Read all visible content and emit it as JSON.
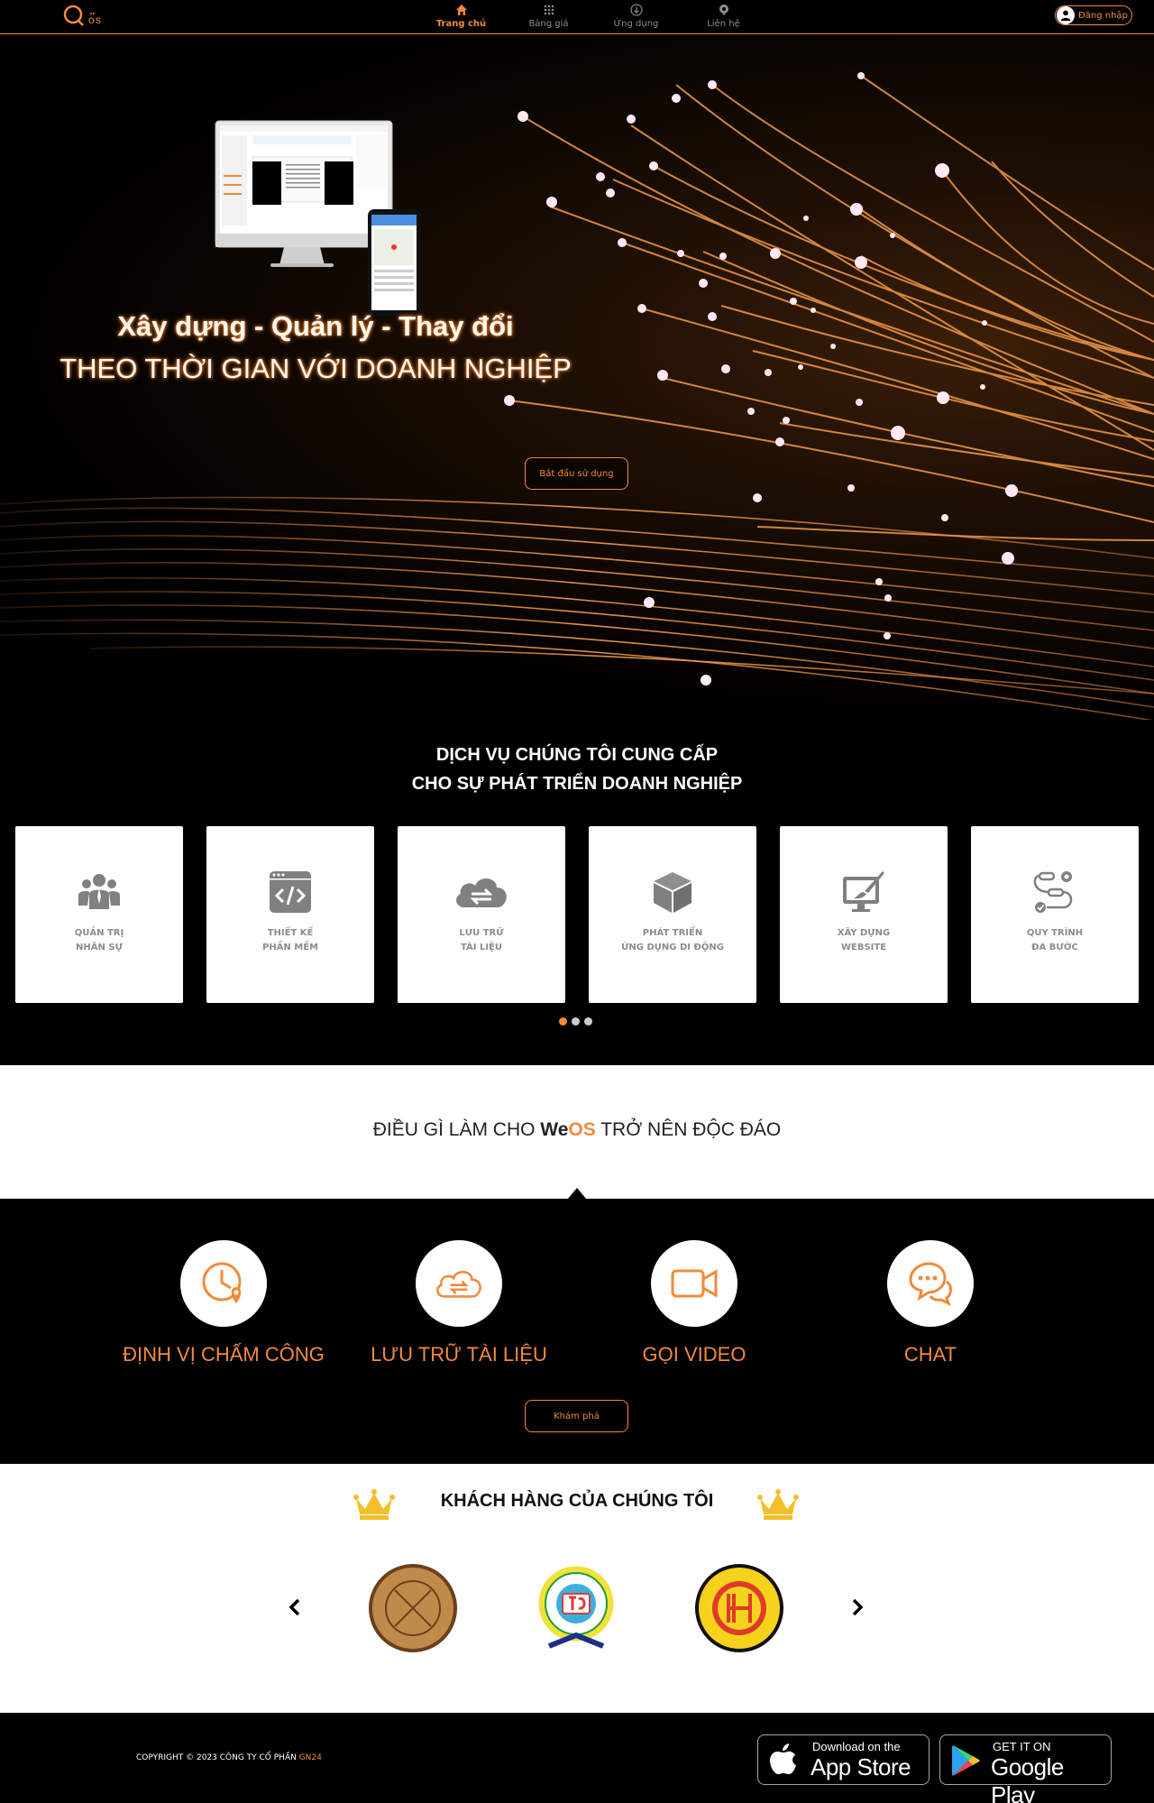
{
  "nav": {
    "items": [
      {
        "label": "Trang chủ",
        "icon": "home-icon",
        "active": true
      },
      {
        "label": "Bảng giá",
        "icon": "grid-icon",
        "active": false
      },
      {
        "label": "Ứng dụng",
        "icon": "download-icon",
        "active": false
      },
      {
        "label": "Liên hệ",
        "icon": "contact-icon",
        "active": false
      }
    ],
    "login_label": "Đăng nhập"
  },
  "hero": {
    "line1": "Xây dựng - Quản lý - Thay đổi",
    "line2": "THEO THỜI GIAN VỚI DOANH NGHIỆP",
    "cta_label": "Bắt đầu sử dụng"
  },
  "services": {
    "title_line1": "DỊCH VỤ CHÚNG TÔI CUNG CẤP",
    "title_line2": "CHO SỰ PHÁT TRIỂN DOANH NGHIỆP",
    "cards": [
      {
        "line1": "QUẢN TRỊ",
        "line2": "NHÂN SỰ",
        "icon": "people-icon"
      },
      {
        "line1": "THIẾT KẾ",
        "line2": "PHẦN MỀM",
        "icon": "code-window-icon"
      },
      {
        "line1": "LƯU TRỮ",
        "line2": "TÀI LIỆU",
        "icon": "cloud-sync-icon"
      },
      {
        "line1": "PHÁT TRIỂN",
        "line2": "ỨNG DỤNG DI ĐỘNG",
        "icon": "cube-icon"
      },
      {
        "line1": "XÂY DỰNG",
        "line2": "WEBSITE",
        "icon": "monitor-brush-icon"
      },
      {
        "line1": "QUY TRÌNH",
        "line2": "ĐA BƯỚC",
        "icon": "workflow-icon"
      }
    ],
    "pager_active": 1,
    "pager_count": 3
  },
  "unique": {
    "title_prefix": "ĐIỀU GÌ LÀM CHO ",
    "brand_we": "We",
    "brand_os": "OS",
    "title_suffix": " TRỞ NÊN ĐỘC ĐÁO",
    "features": [
      {
        "label": "ĐỊNH VỊ CHẤM CÔNG",
        "icon": "clock-location-icon"
      },
      {
        "label": "LƯU TRỮ TÀI LIỆU",
        "icon": "cloud-sync-icon"
      },
      {
        "label": "GỌI VIDEO",
        "icon": "video-camera-icon"
      },
      {
        "label": "CHAT",
        "icon": "chat-bubbles-icon"
      }
    ],
    "explore_label": "Khám phá"
  },
  "customers": {
    "title": "KHÁCH HÀNG CỦA CHÚNG TÔI"
  },
  "footer": {
    "copyright_prefix": "COPYRIGHT © 2023 CÔNG TY CỔ PHẦN ",
    "copyright_brand": "GN24",
    "appstore_small": "Download on the",
    "appstore_big": "App Store",
    "googleplay_small": "GET IT ON",
    "googleplay_big": "Google Play"
  },
  "colors": {
    "accent": "#f28a3c",
    "background": "#000000",
    "card": "#ffffff",
    "muted_text": "#8c8c8c"
  }
}
